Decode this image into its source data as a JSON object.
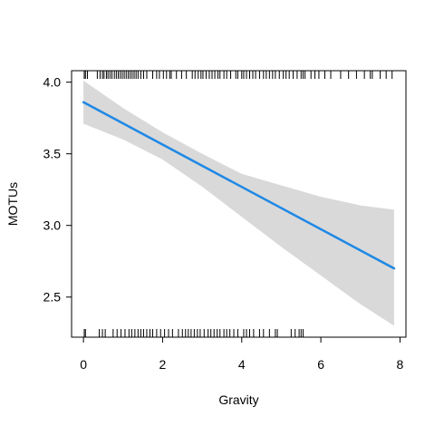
{
  "chart_data": {
    "type": "line",
    "title": "",
    "xlabel": "Gravity",
    "ylabel": "MOTUs",
    "xlim": [
      -0.3,
      8.15
    ],
    "ylim": [
      2.22,
      4.08
    ],
    "x_ticks": [
      0,
      2,
      4,
      6,
      8
    ],
    "x_tick_labels": [
      "0",
      "2",
      "4",
      "6",
      "8"
    ],
    "y_ticks": [
      2.5,
      3.0,
      3.5,
      4.0
    ],
    "y_tick_labels": [
      "2.5",
      "3.0",
      "3.5",
      "4.0"
    ],
    "grid": false,
    "legend": "none",
    "series": [
      {
        "x": [
          0,
          7.85
        ],
        "y": [
          3.86,
          2.7
        ],
        "color": "#1e88e5"
      }
    ],
    "confidence_band": {
      "color": "#d9d9d9",
      "x": [
        0,
        1,
        2,
        3,
        4,
        5,
        6,
        7,
        7.85
      ],
      "lower": [
        3.71,
        3.6,
        3.46,
        3.27,
        3.06,
        2.85,
        2.65,
        2.45,
        2.3
      ],
      "upper": [
        4.01,
        3.82,
        3.65,
        3.5,
        3.36,
        3.28,
        3.2,
        3.14,
        3.11
      ]
    },
    "rug_top": [
      0.02,
      0.05,
      0.1,
      0.35,
      0.42,
      0.48,
      0.52,
      0.58,
      0.62,
      0.67,
      0.72,
      0.78,
      0.83,
      0.88,
      0.93,
      0.98,
      1.03,
      1.08,
      1.13,
      1.18,
      1.23,
      1.28,
      1.33,
      1.38,
      1.45,
      1.52,
      1.6,
      1.75,
      1.85,
      1.92,
      2.02,
      2.1,
      2.18,
      2.22,
      2.35,
      2.48,
      2.6,
      2.75,
      2.82,
      2.9,
      2.97,
      3.02,
      3.1,
      3.18,
      3.25,
      3.32,
      3.4,
      3.45,
      3.55,
      3.62,
      3.72,
      3.85,
      3.9,
      4.0,
      4.05,
      4.12,
      4.2,
      4.28,
      4.35,
      4.45,
      4.55,
      4.62,
      4.7,
      4.78,
      4.85,
      4.95,
      5.05,
      5.12,
      5.2,
      5.3,
      5.4,
      5.5,
      5.55,
      5.6,
      5.75,
      5.85,
      5.95,
      6.1,
      6.25,
      6.5,
      6.7,
      6.9,
      7.1,
      7.25,
      7.3,
      7.5,
      7.65,
      7.8
    ],
    "rug_bottom": [
      0.02,
      0.05,
      0.4,
      0.48,
      0.55,
      0.75,
      0.85,
      0.95,
      1.05,
      1.15,
      1.22,
      1.3,
      1.38,
      1.45,
      1.52,
      1.6,
      1.68,
      1.75,
      1.85,
      1.95,
      2.05,
      2.15,
      2.25,
      2.4,
      2.5,
      2.58,
      2.65,
      2.72,
      2.8,
      2.88,
      2.95,
      3.05,
      3.15,
      3.22,
      3.3,
      3.38,
      3.45,
      3.55,
      3.62,
      3.7,
      3.8,
      3.9,
      4.05,
      4.12,
      4.2,
      4.3,
      4.45,
      4.55,
      4.7,
      4.85,
      4.9,
      5.25,
      5.35,
      5.45,
      5.5,
      5.55
    ]
  }
}
